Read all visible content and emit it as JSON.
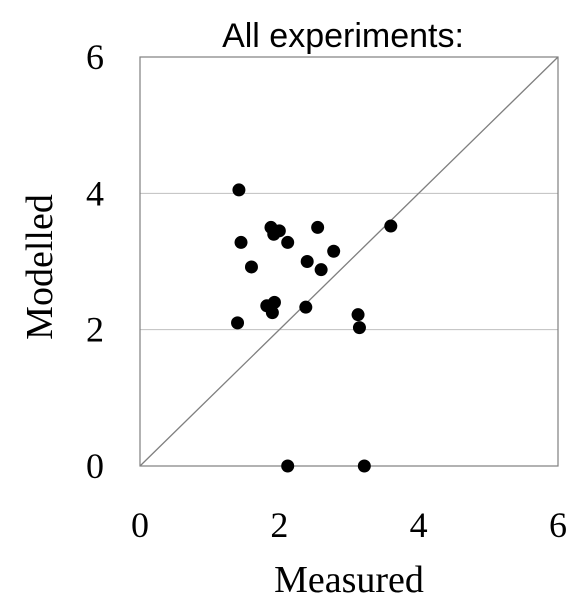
{
  "chart_data": {
    "type": "scatter",
    "title": "All experiments:",
    "xlabel": "Measured",
    "ylabel": "Modelled",
    "xlim": [
      0,
      6
    ],
    "ylim": [
      0,
      6
    ],
    "xticks": [
      "0",
      "2",
      "4",
      "6"
    ],
    "yticks": [
      "0",
      "2",
      "4",
      "6"
    ],
    "grid": "horizontal",
    "reference_line": "y = x",
    "series": [
      {
        "points": [
          {
            "x": 1.42,
            "y": 4.05
          },
          {
            "x": 1.45,
            "y": 3.28
          },
          {
            "x": 1.6,
            "y": 2.92
          },
          {
            "x": 1.4,
            "y": 2.1
          },
          {
            "x": 1.88,
            "y": 3.5
          },
          {
            "x": 1.92,
            "y": 3.4
          },
          {
            "x": 2.0,
            "y": 3.45
          },
          {
            "x": 2.12,
            "y": 3.28
          },
          {
            "x": 2.55,
            "y": 3.5
          },
          {
            "x": 2.4,
            "y": 3.0
          },
          {
            "x": 2.6,
            "y": 2.88
          },
          {
            "x": 2.78,
            "y": 3.15
          },
          {
            "x": 3.6,
            "y": 3.52
          },
          {
            "x": 1.82,
            "y": 2.35
          },
          {
            "x": 1.93,
            "y": 2.4
          },
          {
            "x": 1.9,
            "y": 2.25
          },
          {
            "x": 2.38,
            "y": 2.33
          },
          {
            "x": 3.13,
            "y": 2.22
          },
          {
            "x": 3.15,
            "y": 2.03
          },
          {
            "x": 2.12,
            "y": 0.0
          },
          {
            "x": 3.22,
            "y": 0.0
          }
        ]
      }
    ],
    "colors": {
      "points": "#000000",
      "grid": "#bfbfbf",
      "axis": "#7f7f7f",
      "diagonal": "#7f7f7f"
    }
  }
}
